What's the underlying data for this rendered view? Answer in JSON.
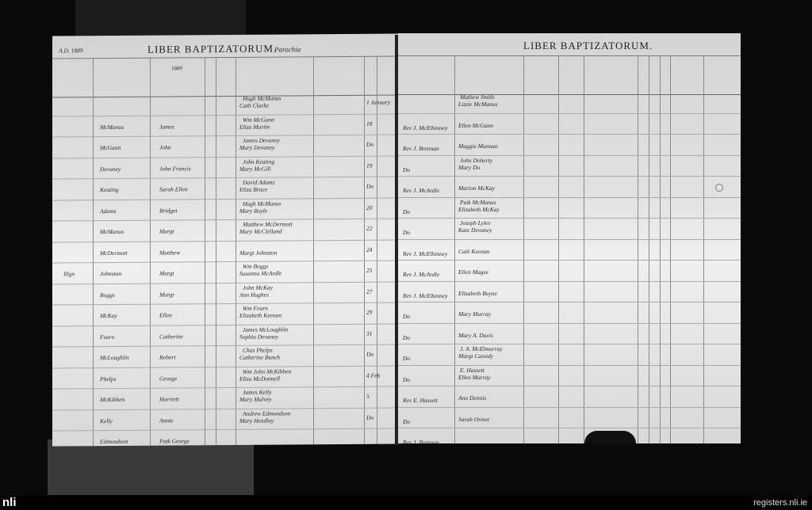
{
  "left_page": {
    "year": "A.D. 1889",
    "title": "LIBER BAPTIZATORUM.",
    "parish_label": "Parochia",
    "anno": "1889"
  },
  "right_page": {
    "title": "LIBER BAPTIZATORUM."
  },
  "entries": [
    {
      "surname": "",
      "first": "",
      "parents": [
        "Hugh McManus",
        "Cath Clarke"
      ],
      "date": "1 January",
      "minister": "",
      "sponsors": [
        "Mathew Smith",
        "Lizzie McManus"
      ]
    },
    {
      "surname": "McManus",
      "first": "James",
      "parents": [
        "Wm McGann",
        "Eliza Martin"
      ],
      "date": "18",
      "minister": "Rev J. McElhinney",
      "sponsors": [
        "",
        "Ellen McGann"
      ]
    },
    {
      "surname": "McGann",
      "first": "John",
      "parents": [
        "James Devaney",
        "Mary Devaney"
      ],
      "date": "Do",
      "minister": "Rev J. Brennan",
      "sponsors": [
        "",
        "Maggie Mannan"
      ]
    },
    {
      "surname": "Devaney",
      "first": "John Francis",
      "parents": [
        "John Keating",
        "Mary McGill"
      ],
      "date": "19",
      "minister": "Do",
      "sponsors": [
        "John Doherty",
        "Mary Do"
      ]
    },
    {
      "surname": "Keating",
      "first": "Sarah Ellen",
      "parents": [
        "David Adams",
        "Eliza Bruce"
      ],
      "date": "Do",
      "minister": "Rev J. McArdle",
      "sponsors": [
        "",
        "Marion McKay"
      ]
    },
    {
      "surname": "Adams",
      "first": "Bridget",
      "parents": [
        "Hugh McManus",
        "Mary Boyle"
      ],
      "date": "20",
      "minister": "Do",
      "sponsors": [
        "Patk McManus",
        "Elizabeth McKay"
      ]
    },
    {
      "surname": "McManus",
      "first": "Margt",
      "parents": [
        "Matthew McDermott",
        "Mary McClelland"
      ],
      "date": "22",
      "minister": "Do",
      "sponsors": [
        "Joseph Lyles",
        "Kate Devaney"
      ]
    },
    {
      "surname": "McDermott",
      "first": "Matthew",
      "parents": [
        "",
        "Margt Johnston"
      ],
      "date": "24",
      "minister": "Rev J. McElhinney",
      "sponsors": [
        "",
        "Cath Keenan"
      ]
    },
    {
      "surname": "Johnston",
      "first": "Margt",
      "note": "Illgn",
      "parents": [
        "Wm Boggs",
        "Susanna McArdle"
      ],
      "date": "25",
      "minister": "Rev J. McArdle",
      "sponsors": [
        "",
        "Ellen Magee"
      ]
    },
    {
      "surname": "Boggs",
      "first": "Margt",
      "parents": [
        "John McKay",
        "Ann Hughes"
      ],
      "date": "27",
      "minister": "Rev J. McElhinney",
      "sponsors": [
        "",
        "Elizabeth Boyne"
      ]
    },
    {
      "surname": "McKay",
      "first": "Ellen",
      "parents": [
        "Wm Fearn",
        "Elizabeth Keenan"
      ],
      "date": "29",
      "minister": "Do",
      "sponsors": [
        "",
        "Mary Murray"
      ]
    },
    {
      "surname": "Fearn",
      "first": "Catherine",
      "parents": [
        "James McLoughlin",
        "Sophia Devaney"
      ],
      "date": "31",
      "minister": "Do",
      "sponsors": [
        "",
        "Mary A. Davis"
      ]
    },
    {
      "surname": "McLoughlin",
      "first": "Robert",
      "parents": [
        "Chas Phelps",
        "Catherine Bunch"
      ],
      "date": "Do",
      "minister": "Do",
      "sponsors": [
        "J. A. McElmurray",
        "Margt Cassidy"
      ]
    },
    {
      "surname": "Phelps",
      "first": "George",
      "parents": [
        "Wm John McKibben",
        "Eliza McDonnell"
      ],
      "date": "4 Feb",
      "minister": "Do",
      "sponsors": [
        "E. Hassett",
        "Ellen Murray"
      ]
    },
    {
      "surname": "McKibben",
      "first": "Harriett",
      "parents": [
        "James Kelly",
        "Mary Mulvey"
      ],
      "date": "5",
      "minister": "Rev E. Hassett",
      "sponsors": [
        "",
        "Ann Dennis"
      ]
    },
    {
      "surname": "Kelly",
      "first": "Annie",
      "parents": [
        "Andrew Edmondson",
        "Mary Hendley"
      ],
      "date": "Do",
      "minister": "Do",
      "sponsors": [
        "",
        "Sarah Ormet"
      ]
    },
    {
      "surname": "Edmondson",
      "first": "Patk George",
      "parents": [
        "",
        ""
      ],
      "date": "",
      "minister": "Rev J. Brennan",
      "sponsors": [
        "",
        ""
      ]
    }
  ],
  "footer": {
    "logo": "nli",
    "site": "registers.nli.ie"
  }
}
